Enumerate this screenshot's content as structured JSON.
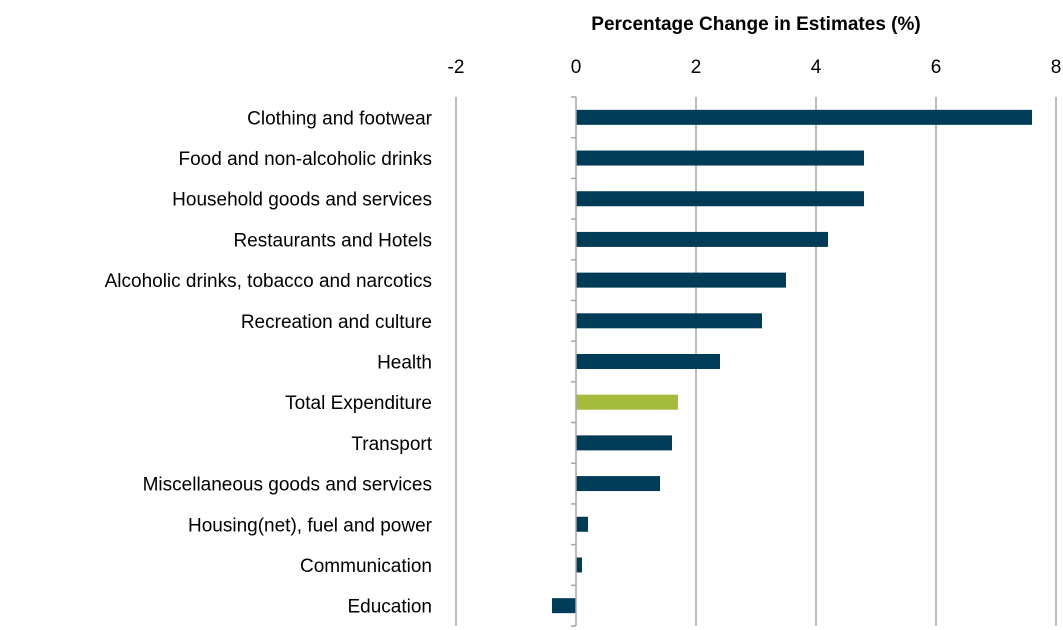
{
  "chart_data": {
    "type": "bar",
    "orientation": "horizontal",
    "xlabel": "Percentage Change in Estimates (%)",
    "xlim": [
      -2,
      8
    ],
    "x_ticks": [
      "-2",
      "0",
      "2",
      "4",
      "6",
      "8"
    ],
    "x_axis_position": "top",
    "grid": "vertical",
    "categories": [
      "Clothing and footwear",
      "Food and non-alcoholic drinks",
      "Household goods and services",
      "Restaurants and Hotels",
      "Alcoholic drinks, tobacco and narcotics",
      "Recreation and culture",
      "Health",
      "Total Expenditure",
      "Transport",
      "Miscellaneous goods and services",
      "Housing(net), fuel and power",
      "Communication",
      "Education"
    ],
    "values": [
      7.6,
      4.8,
      4.8,
      4.2,
      3.5,
      3.1,
      2.4,
      1.7,
      1.6,
      1.4,
      0.2,
      0.1,
      -0.4
    ],
    "colors": {
      "default": "#003b57",
      "highlight": "#a5bb3b",
      "highlight_category": "Total Expenditure",
      "grid": "#a6a6a6"
    }
  }
}
